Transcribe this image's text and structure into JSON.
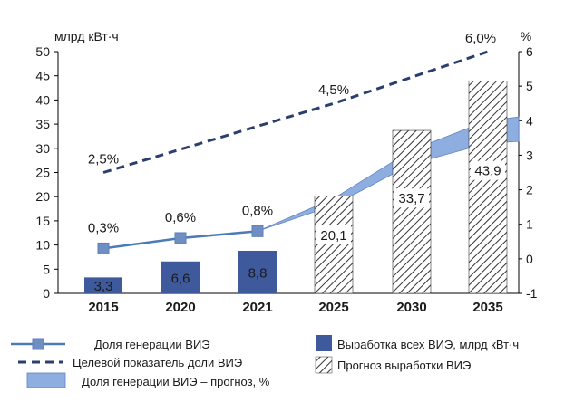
{
  "chart_data": {
    "type": "bar",
    "categories": [
      "2015",
      "2020",
      "2021",
      "2025",
      "2030",
      "2035"
    ],
    "ylabel_left": "млрд кВт·ч",
    "ylabel_right": "%",
    "ylim_left": [
      0,
      50
    ],
    "yticks_left": [
      "0",
      "5",
      "10",
      "15",
      "20",
      "25",
      "30",
      "35",
      "40",
      "45",
      "50"
    ],
    "ylim_right": [
      -1,
      6
    ],
    "yticks_right": [
      "-1",
      "0",
      "1",
      "2",
      "3",
      "4",
      "5",
      "6"
    ],
    "bars_actual": {
      "name": "Выработка всех ВИЭ, млрд кВт·ч",
      "color": "#3f5a9c",
      "values": [
        3.3,
        6.6,
        8.8,
        null,
        null,
        null
      ],
      "labels": [
        "3,3",
        "6,6",
        "8,8",
        "",
        "",
        ""
      ]
    },
    "bars_forecast": {
      "name": "Прогноз выработки ВИЭ",
      "values": [
        null,
        null,
        null,
        20.1,
        33.7,
        43.9
      ],
      "labels": [
        "",
        "",
        "",
        "20,1",
        "33,7",
        "43,9"
      ]
    },
    "line_share": {
      "name": "Доля генерации ВИЭ",
      "color": "#4c7ab8",
      "x": [
        "2015",
        "2020",
        "2021"
      ],
      "values": [
        0.3,
        0.6,
        0.8
      ],
      "labels": [
        "0,3%",
        "0,6%",
        "0,8%"
      ]
    },
    "line_target": {
      "name": "Целевой показатель доли ВИЭ",
      "color": "#2b3f6e",
      "x": [
        "2015",
        "2025",
        "2035"
      ],
      "values": [
        2.5,
        4.5,
        6.0
      ],
      "labels": [
        "2,5%",
        "4,5%",
        "6,0%"
      ]
    },
    "band_forecast": {
      "name": "Доля генерации ВИЭ – прогноз, %",
      "color": "#8eaee0",
      "points": [
        {
          "x": 2021,
          "low": 0.8,
          "high": 0.8
        },
        {
          "x": 2025,
          "low": 1.55,
          "high": 1.75
        },
        {
          "x": 2030,
          "low": 2.75,
          "high": 3.15
        },
        {
          "x": 2035,
          "low": 3.35,
          "high": 4.0
        }
      ]
    }
  }
}
